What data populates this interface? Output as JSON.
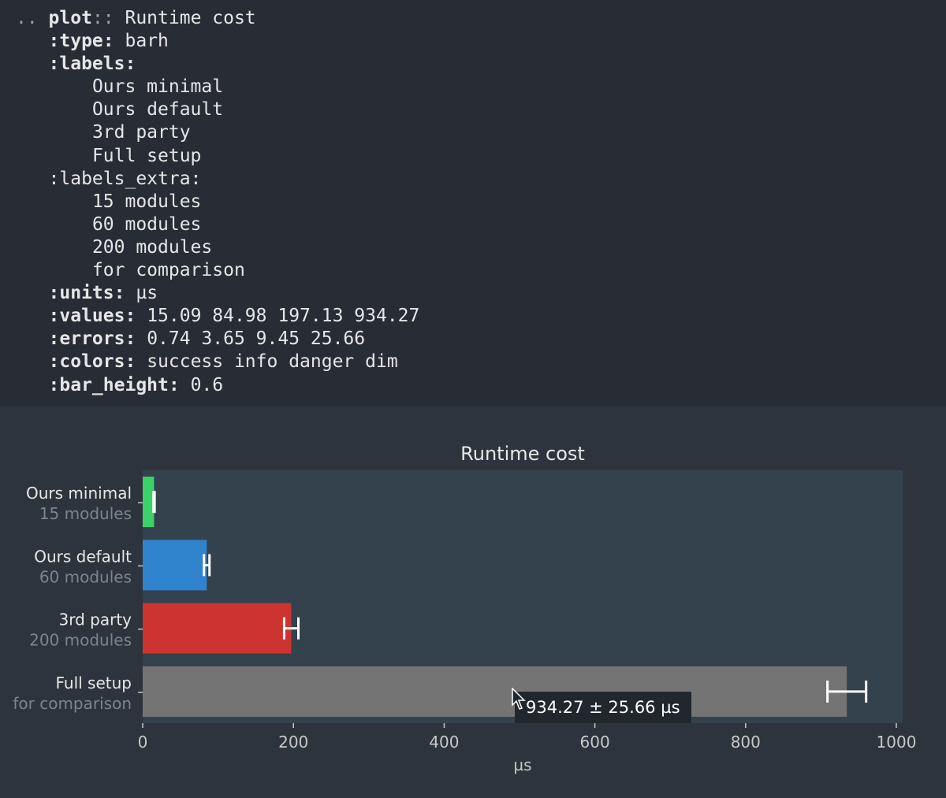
{
  "source": {
    "lines": [
      {
        "indent": "",
        "prefix": ".. ",
        "key": "plot",
        "sep": ":: ",
        "value": "Runtime cost"
      },
      {
        "indent": "   ",
        "prefix": "",
        "key": ":type:",
        "sep": " ",
        "value": "barh"
      },
      {
        "indent": "   ",
        "prefix": "",
        "key": ":labels:",
        "sep": "",
        "value": ""
      },
      {
        "indent": "       ",
        "prefix": "",
        "key": "",
        "sep": "",
        "value": "Ours minimal"
      },
      {
        "indent": "       ",
        "prefix": "",
        "key": "",
        "sep": "",
        "value": "Ours default"
      },
      {
        "indent": "       ",
        "prefix": "",
        "key": "",
        "sep": "",
        "value": "3rd party"
      },
      {
        "indent": "       ",
        "prefix": "",
        "key": "",
        "sep": "",
        "value": "Full setup"
      },
      {
        "indent": "   ",
        "prefix": "",
        "key": "",
        "sep": "",
        "value": ":labels_extra:"
      },
      {
        "indent": "       ",
        "prefix": "",
        "key": "",
        "sep": "",
        "value": "15 modules"
      },
      {
        "indent": "       ",
        "prefix": "",
        "key": "",
        "sep": "",
        "value": "60 modules"
      },
      {
        "indent": "       ",
        "prefix": "",
        "key": "",
        "sep": "",
        "value": "200 modules"
      },
      {
        "indent": "       ",
        "prefix": "",
        "key": "",
        "sep": "",
        "value": "for comparison"
      },
      {
        "indent": "   ",
        "prefix": "",
        "key": ":units:",
        "sep": " ",
        "value": "µs"
      },
      {
        "indent": "   ",
        "prefix": "",
        "key": ":values:",
        "sep": " ",
        "value": "15.09 84.98 197.13 934.27"
      },
      {
        "indent": "   ",
        "prefix": "",
        "key": ":errors:",
        "sep": " ",
        "value": "0.74 3.65 9.45 25.66"
      },
      {
        "indent": "   ",
        "prefix": "",
        "key": ":colors:",
        "sep": " ",
        "value": "success info danger dim"
      },
      {
        "indent": "   ",
        "prefix": "",
        "key": ":bar_height:",
        "sep": " ",
        "value": "0.6"
      }
    ]
  },
  "chart_data": {
    "type": "bar",
    "orientation": "horizontal",
    "title": "Runtime cost",
    "xlabel": "µs",
    "xlim": [
      0,
      1000
    ],
    "xticks": [
      0,
      200,
      400,
      600,
      800,
      1000
    ],
    "bar_height": 0.6,
    "categories": [
      "Ours minimal",
      "Ours default",
      "3rd party",
      "Full setup"
    ],
    "categories_extra": [
      "15 modules",
      "60 modules",
      "200 modules",
      "for comparison"
    ],
    "values": [
      15.09,
      84.98,
      197.13,
      934.27
    ],
    "errors": [
      0.74,
      3.65,
      9.45,
      25.66
    ],
    "colors": [
      "#3bd267",
      "#2f83cc",
      "#cd3431",
      "#747474"
    ],
    "plot_background": "#34424d"
  },
  "tooltip": {
    "text": "934.27 ± 25.66 µs"
  }
}
